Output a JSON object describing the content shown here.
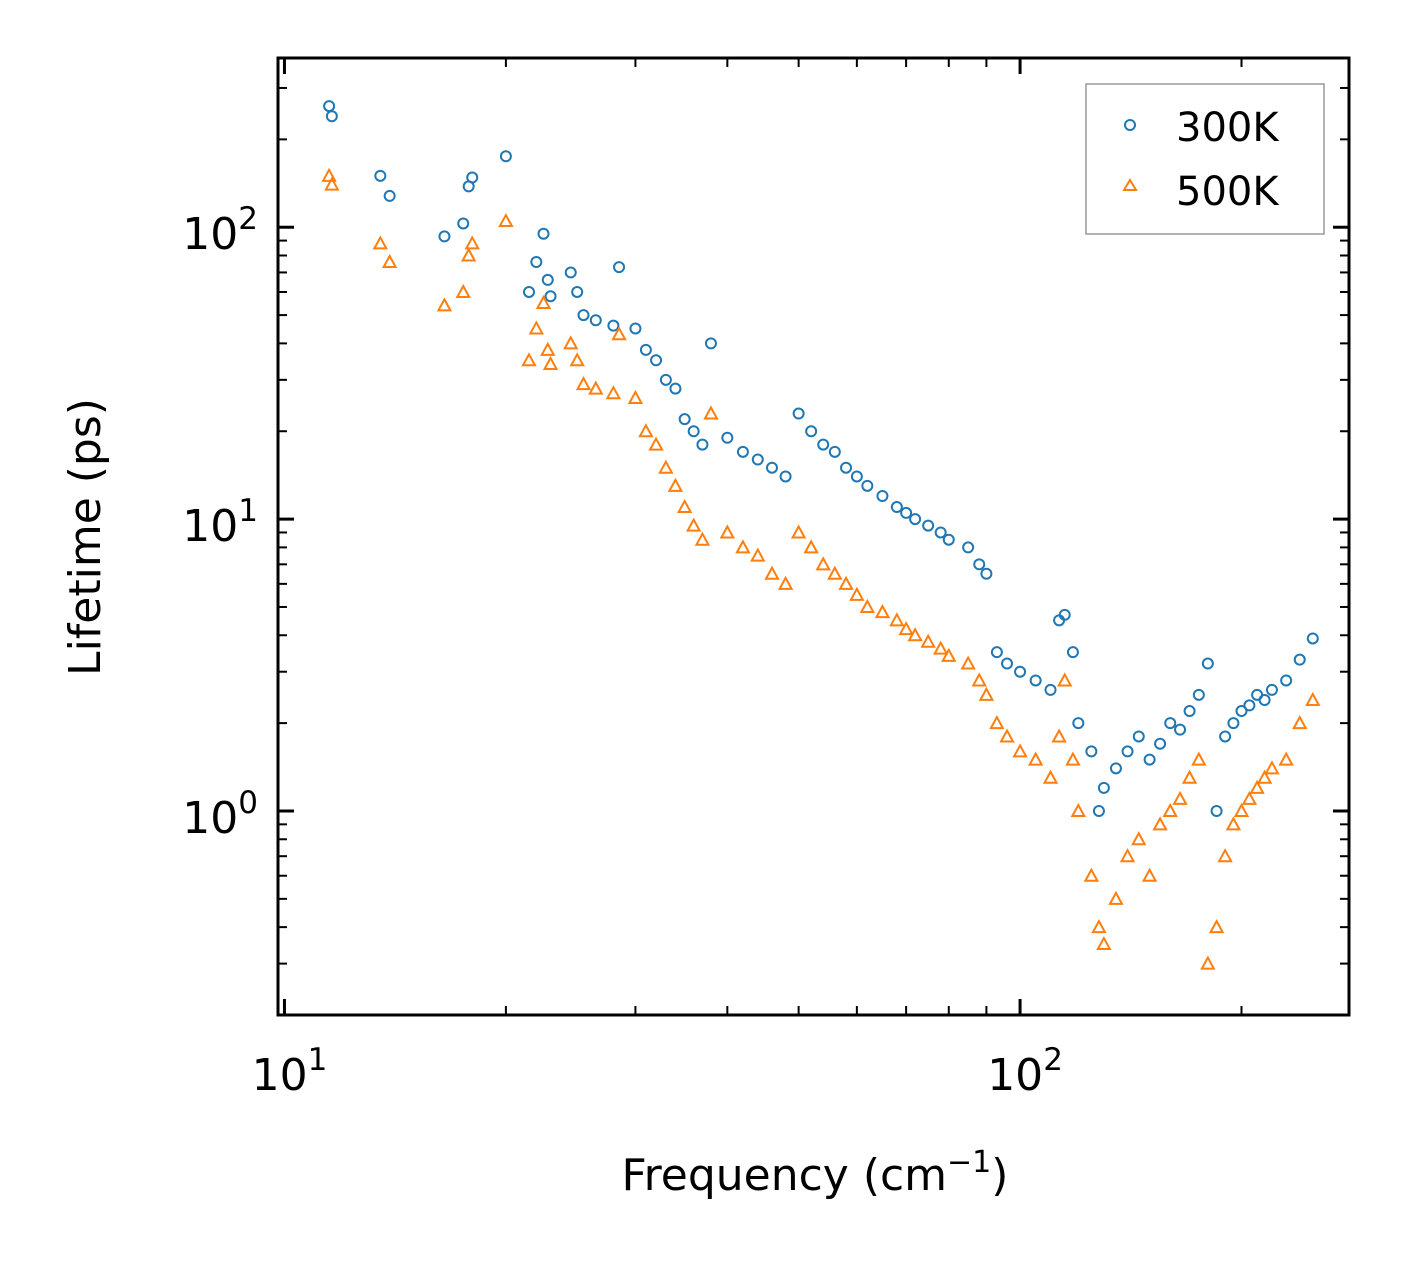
{
  "chart_data": {
    "type": "scatter",
    "xscale": "log",
    "yscale": "log",
    "xlabel": "Frequency (cm",
    "xlabel_sup": "−1",
    "xlabel_end": ")",
    "ylabel": "Lifetime (ps)",
    "xlim": [
      9.8,
      280
    ],
    "ylim": [
      0.2,
      380
    ],
    "x_ticks": [
      {
        "base": "10",
        "exp": "1",
        "value": 10
      },
      {
        "base": "10",
        "exp": "2",
        "value": 100
      }
    ],
    "y_ticks": [
      {
        "base": "10",
        "exp": "0",
        "value": 1
      },
      {
        "base": "10",
        "exp": "1",
        "value": 10
      },
      {
        "base": "10",
        "exp": "2",
        "value": 100
      }
    ],
    "legend": {
      "position": "top-right",
      "entries": [
        "300K",
        "500K"
      ]
    },
    "colors": {
      "300K": "#1f77b4",
      "500K": "#ff7f0e"
    },
    "markers": {
      "300K": "circle",
      "500K": "triangle"
    },
    "series": [
      {
        "name": "300K",
        "points": [
          [
            11.5,
            260
          ],
          [
            11.6,
            240
          ],
          [
            13.5,
            150
          ],
          [
            13.9,
            128
          ],
          [
            16.5,
            93
          ],
          [
            17.5,
            103
          ],
          [
            17.8,
            138
          ],
          [
            18.0,
            148
          ],
          [
            20.0,
            175
          ],
          [
            21.5,
            60
          ],
          [
            22.0,
            76
          ],
          [
            22.5,
            95
          ],
          [
            22.8,
            66
          ],
          [
            23.0,
            58
          ],
          [
            24.5,
            70
          ],
          [
            25.0,
            60
          ],
          [
            25.5,
            50
          ],
          [
            26.5,
            48
          ],
          [
            28.0,
            46
          ],
          [
            28.5,
            73
          ],
          [
            30.0,
            45
          ],
          [
            31.0,
            38
          ],
          [
            32.0,
            35
          ],
          [
            33.0,
            30
          ],
          [
            34.0,
            28
          ],
          [
            35.0,
            22
          ],
          [
            36.0,
            20
          ],
          [
            37.0,
            18
          ],
          [
            38.0,
            40
          ],
          [
            40.0,
            19
          ],
          [
            42.0,
            17
          ],
          [
            44.0,
            16
          ],
          [
            46.0,
            15
          ],
          [
            48.0,
            14
          ],
          [
            50.0,
            23
          ],
          [
            52.0,
            20
          ],
          [
            54.0,
            18
          ],
          [
            56.0,
            17
          ],
          [
            58.0,
            15
          ],
          [
            60.0,
            14
          ],
          [
            62.0,
            13
          ],
          [
            65.0,
            12
          ],
          [
            68.0,
            11
          ],
          [
            70.0,
            10.5
          ],
          [
            72.0,
            10
          ],
          [
            75.0,
            9.5
          ],
          [
            78.0,
            9
          ],
          [
            80.0,
            8.5
          ],
          [
            85.0,
            8
          ],
          [
            88.0,
            7
          ],
          [
            90.0,
            6.5
          ],
          [
            93.0,
            3.5
          ],
          [
            96.0,
            3.2
          ],
          [
            100.0,
            3.0
          ],
          [
            105.0,
            2.8
          ],
          [
            110.0,
            2.6
          ],
          [
            113.0,
            4.5
          ],
          [
            115.0,
            4.7
          ],
          [
            118.0,
            3.5
          ],
          [
            120.0,
            2.0
          ],
          [
            125.0,
            1.6
          ],
          [
            128.0,
            1.0
          ],
          [
            130.0,
            1.2
          ],
          [
            135.0,
            1.4
          ],
          [
            140.0,
            1.6
          ],
          [
            145.0,
            1.8
          ],
          [
            150.0,
            1.5
          ],
          [
            155.0,
            1.7
          ],
          [
            160.0,
            2.0
          ],
          [
            165.0,
            1.9
          ],
          [
            170.0,
            2.2
          ],
          [
            175.0,
            2.5
          ],
          [
            180.0,
            3.2
          ],
          [
            185.0,
            1.0
          ],
          [
            190.0,
            1.8
          ],
          [
            195.0,
            2.0
          ],
          [
            200.0,
            2.2
          ],
          [
            205.0,
            2.3
          ],
          [
            210.0,
            2.5
          ],
          [
            215.0,
            2.4
          ],
          [
            220.0,
            2.6
          ],
          [
            230.0,
            2.8
          ],
          [
            240.0,
            3.3
          ],
          [
            250.0,
            3.9
          ]
        ]
      },
      {
        "name": "500K",
        "points": [
          [
            11.5,
            150
          ],
          [
            11.6,
            140
          ],
          [
            13.5,
            88
          ],
          [
            13.9,
            76
          ],
          [
            16.5,
            54
          ],
          [
            17.5,
            60
          ],
          [
            17.8,
            80
          ],
          [
            18.0,
            88
          ],
          [
            20.0,
            105
          ],
          [
            21.5,
            35
          ],
          [
            22.0,
            45
          ],
          [
            22.5,
            55
          ],
          [
            22.8,
            38
          ],
          [
            23.0,
            34
          ],
          [
            24.5,
            40
          ],
          [
            25.0,
            35
          ],
          [
            25.5,
            29
          ],
          [
            26.5,
            28
          ],
          [
            28.0,
            27
          ],
          [
            28.5,
            43
          ],
          [
            30.0,
            26
          ],
          [
            31.0,
            20
          ],
          [
            32.0,
            18
          ],
          [
            33.0,
            15
          ],
          [
            34.0,
            13
          ],
          [
            35.0,
            11
          ],
          [
            36.0,
            9.5
          ],
          [
            37.0,
            8.5
          ],
          [
            38.0,
            23
          ],
          [
            40.0,
            9
          ],
          [
            42.0,
            8
          ],
          [
            44.0,
            7.5
          ],
          [
            46.0,
            6.5
          ],
          [
            48.0,
            6
          ],
          [
            50.0,
            9
          ],
          [
            52.0,
            8
          ],
          [
            54.0,
            7
          ],
          [
            56.0,
            6.5
          ],
          [
            58.0,
            6
          ],
          [
            60.0,
            5.5
          ],
          [
            62.0,
            5
          ],
          [
            65.0,
            4.8
          ],
          [
            68.0,
            4.5
          ],
          [
            70.0,
            4.2
          ],
          [
            72.0,
            4
          ],
          [
            75.0,
            3.8
          ],
          [
            78.0,
            3.6
          ],
          [
            80.0,
            3.4
          ],
          [
            85.0,
            3.2
          ],
          [
            88.0,
            2.8
          ],
          [
            90.0,
            2.5
          ],
          [
            93.0,
            2.0
          ],
          [
            96.0,
            1.8
          ],
          [
            100.0,
            1.6
          ],
          [
            105.0,
            1.5
          ],
          [
            110.0,
            1.3
          ],
          [
            113.0,
            1.8
          ],
          [
            115.0,
            2.8
          ],
          [
            118.0,
            1.5
          ],
          [
            120.0,
            1.0
          ],
          [
            125.0,
            0.6
          ],
          [
            128.0,
            0.4
          ],
          [
            130.0,
            0.35
          ],
          [
            135.0,
            0.5
          ],
          [
            140.0,
            0.7
          ],
          [
            145.0,
            0.8
          ],
          [
            150.0,
            0.6
          ],
          [
            155.0,
            0.9
          ],
          [
            160.0,
            1.0
          ],
          [
            165.0,
            1.1
          ],
          [
            170.0,
            1.3
          ],
          [
            175.0,
            1.5
          ],
          [
            180.0,
            0.3
          ],
          [
            185.0,
            0.4
          ],
          [
            190.0,
            0.7
          ],
          [
            195.0,
            0.9
          ],
          [
            200.0,
            1.0
          ],
          [
            205.0,
            1.1
          ],
          [
            210.0,
            1.2
          ],
          [
            215.0,
            1.3
          ],
          [
            220.0,
            1.4
          ],
          [
            230.0,
            1.5
          ],
          [
            240.0,
            2.0
          ],
          [
            250.0,
            2.4
          ]
        ]
      }
    ]
  }
}
